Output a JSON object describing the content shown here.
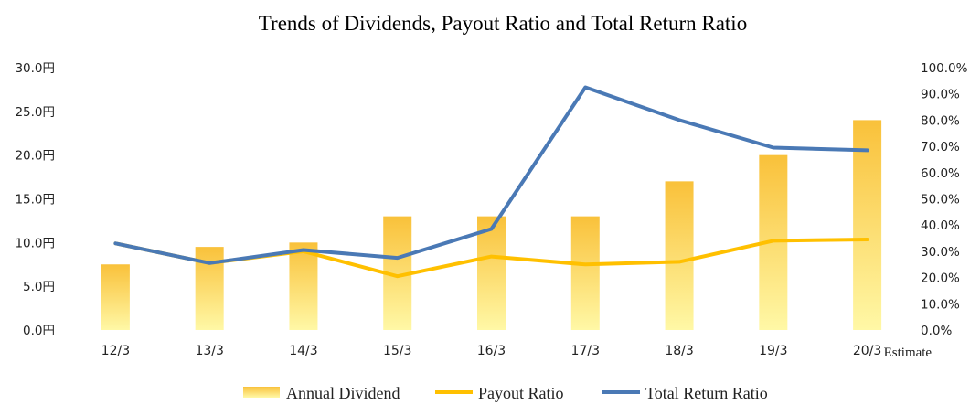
{
  "chart_data": {
    "type": "bar",
    "title": "Trends of Dividends, Payout Ratio and Total Return Ratio",
    "categories": [
      "12/3",
      "13/3",
      "14/3",
      "15/3",
      "16/3",
      "17/3",
      "18/3",
      "19/3",
      "20/3"
    ],
    "x_annotation": "Estimate",
    "y_left": {
      "ticks": [
        "0.0円",
        "5.0円",
        "10.0円",
        "15.0円",
        "20.0円",
        "25.0円",
        "30.0円"
      ],
      "ylim": [
        0,
        30
      ]
    },
    "y_right": {
      "ticks": [
        "0.0%",
        "10.0%",
        "20.0%",
        "30.0%",
        "40.0%",
        "50.0%",
        "60.0%",
        "70.0%",
        "80.0%",
        "90.0%",
        "100.0%"
      ],
      "ylim": [
        0,
        100
      ]
    },
    "grid": false,
    "legend_position": "bottom",
    "series": [
      {
        "name": "Annual Dividend",
        "type": "bar",
        "axis": "left",
        "color_top": "#f9c13a",
        "color_bottom": "#fff8a6",
        "values": [
          7.5,
          9.5,
          10,
          13,
          13,
          13,
          17,
          20,
          24
        ]
      },
      {
        "name": "Payout Ratio",
        "type": "line",
        "axis": "right",
        "color": "#ffc000",
        "values": [
          33,
          25.5,
          30,
          20.5,
          28,
          25,
          26,
          34,
          34.5
        ]
      },
      {
        "name": "Total Return Ratio",
        "type": "line",
        "axis": "right",
        "color": "#4a79b5",
        "values": [
          33,
          25.5,
          30.5,
          27.5,
          38.5,
          92.5,
          80,
          69.5,
          68.5
        ]
      }
    ]
  }
}
